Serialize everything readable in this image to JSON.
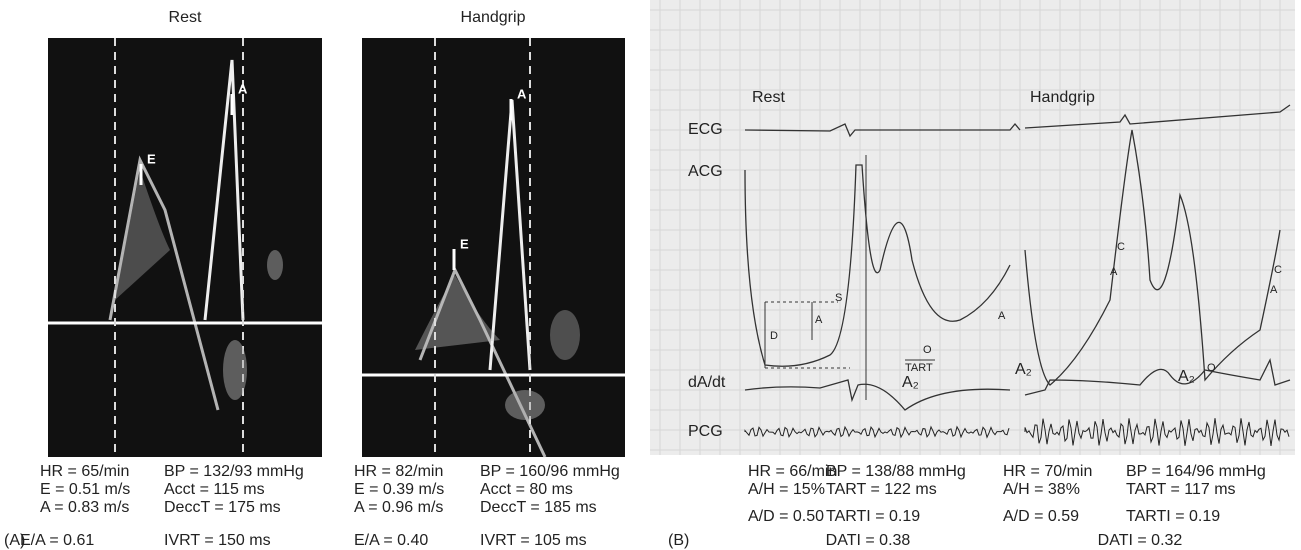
{
  "panel_a": {
    "label": "(A)",
    "rest": {
      "title": "Rest",
      "markers": [
        "E",
        "A"
      ],
      "stats_left": [
        "HR = 65/min",
        "E = 0.51 m/s",
        "A = 0.83 m/s",
        "E/A = 0.61"
      ],
      "stats_right": [
        "BP = 132/93 mmHg",
        "Acct = 115 ms",
        "DeccT = 175 ms",
        "IVRT = 150 ms"
      ]
    },
    "handgrip": {
      "title": "Handgrip",
      "markers": [
        "E",
        "A"
      ],
      "stats_left": [
        "HR = 82/min",
        "E = 0.39 m/s",
        "A = 0.96 m/s",
        "E/A = 0.40"
      ],
      "stats_right": [
        "BP = 160/96 mmHg",
        "Acct = 80 ms",
        "DeccT = 185 ms",
        "IVRT = 105 ms"
      ]
    }
  },
  "panel_b": {
    "label": "(B)",
    "trace_labels": [
      "ECG",
      "ACG",
      "dA/dt",
      "PCG"
    ],
    "rest": {
      "title": "Rest",
      "annotations": [
        "S",
        "A",
        "D",
        "A",
        "O",
        "TART",
        "A₂"
      ],
      "stats_left": [
        "HR = 66/min",
        "A/H = 15%",
        "A/D = 0.50"
      ],
      "stats_right": [
        "BP = 138/88 mmHg",
        "TART = 122 ms",
        "TARTI = 0.19"
      ],
      "footer": "DATI = 0.38"
    },
    "handgrip": {
      "title": "Handgrip",
      "annotations": [
        "C",
        "A",
        "C",
        "A",
        "O",
        "A₂",
        "A₂"
      ],
      "stats_left": [
        "HR = 70/min",
        "A/H = 38%",
        "A/D = 0.59"
      ],
      "stats_right": [
        "BP = 164/96 mmHg",
        "TART = 117 ms",
        "TARTI = 0.19"
      ],
      "footer": "DATI = 0.32"
    }
  }
}
